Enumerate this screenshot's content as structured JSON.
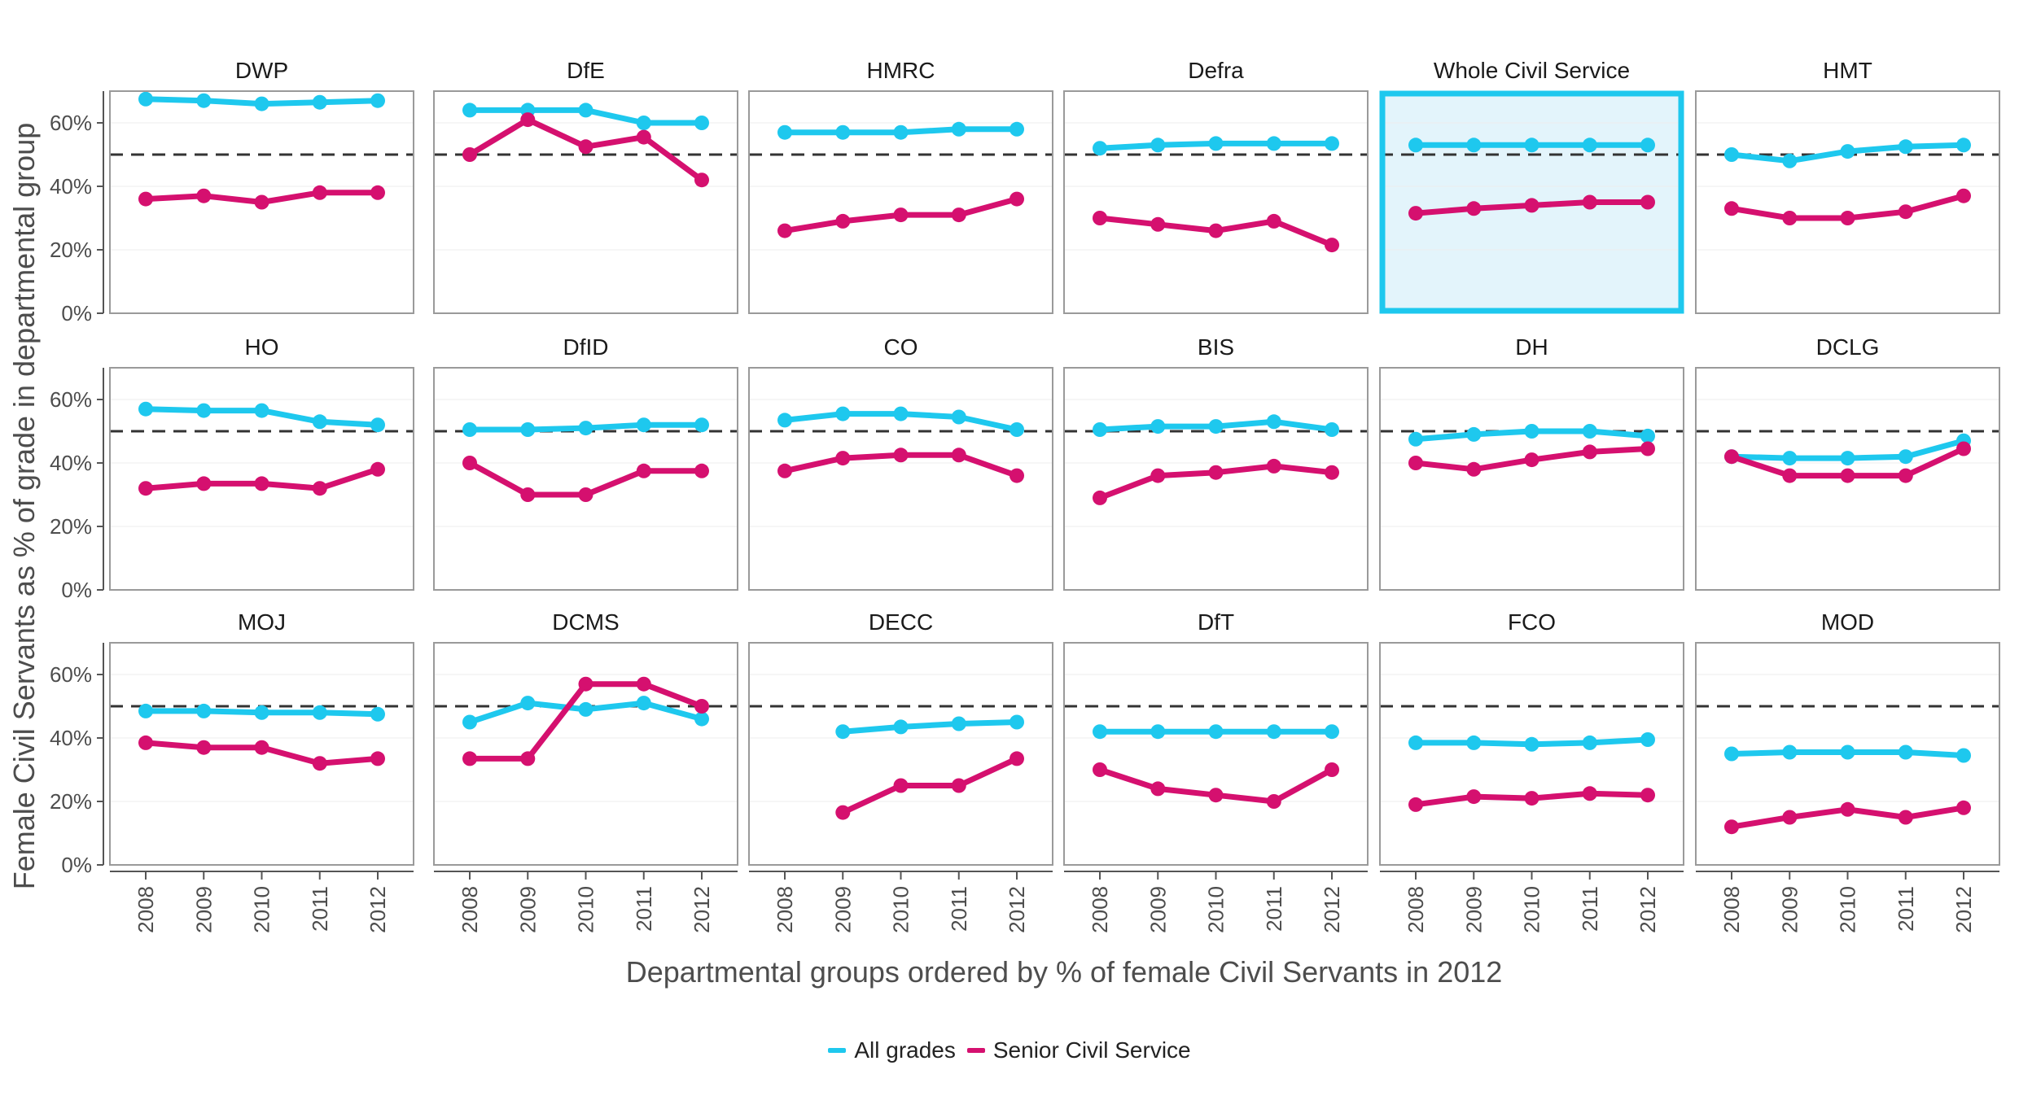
{
  "chart_data": {
    "type": "line",
    "xlabel": "Departmental groups ordered by % of female Civil Servants in 2012",
    "ylabel": "Female Civil Servants as % of grade in departmental group",
    "x_tick_labels": [
      "2008",
      "2009",
      "2010",
      "2011",
      "2012"
    ],
    "y_tick_labels": [
      "0%",
      "20%",
      "40%",
      "60%"
    ],
    "ylim": [
      0,
      70
    ],
    "reference_line": 50,
    "grid": true,
    "legend_position": "bottom",
    "highlight_panel": "Whole Civil Service",
    "colors": {
      "all_grades": "#1EC8EE",
      "senior_civil_service": "#D5106F",
      "highlight_border": "#1EC8EE",
      "highlight_fill": "#E3F4FB",
      "reference_line": "#333333"
    },
    "legend": [
      {
        "key": "all_grades",
        "label": "All grades"
      },
      {
        "key": "senior_civil_service",
        "label": "Senior Civil Service"
      }
    ],
    "panels": [
      {
        "name": "DWP",
        "all": [
          67.5,
          67,
          66,
          66.5,
          67
        ],
        "scs": [
          36,
          37,
          35,
          38,
          38
        ]
      },
      {
        "name": "DfE",
        "all": [
          64,
          64,
          64,
          60,
          60
        ],
        "scs": [
          50,
          61,
          52.5,
          55.5,
          42
        ]
      },
      {
        "name": "HMRC",
        "all": [
          57,
          57,
          57,
          58,
          58
        ],
        "scs": [
          26,
          29,
          31,
          31,
          36
        ]
      },
      {
        "name": "Defra",
        "all": [
          52,
          53,
          53.5,
          53.5,
          53.5
        ],
        "scs": [
          30,
          28,
          26,
          29,
          21.5
        ]
      },
      {
        "name": "Whole Civil Service",
        "all": [
          53,
          53,
          53,
          53,
          53
        ],
        "scs": [
          31.5,
          33,
          34,
          35,
          35
        ]
      },
      {
        "name": "HMT",
        "all": [
          50,
          48,
          51,
          52.5,
          53
        ],
        "scs": [
          33,
          30,
          30,
          32,
          37
        ]
      },
      {
        "name": "HO",
        "all": [
          57,
          56.5,
          56.5,
          53,
          52
        ],
        "scs": [
          32,
          33.5,
          33.5,
          32,
          38
        ]
      },
      {
        "name": "DfID",
        "all": [
          50.5,
          50.5,
          51,
          52,
          52
        ],
        "scs": [
          40,
          30,
          30,
          37.5,
          37.5
        ]
      },
      {
        "name": "CO",
        "all": [
          53.5,
          55.5,
          55.5,
          54.5,
          50.5
        ],
        "scs": [
          37.5,
          41.5,
          42.5,
          42.5,
          36
        ]
      },
      {
        "name": "BIS",
        "all": [
          50.5,
          51.5,
          51.5,
          53,
          50.5
        ],
        "scs": [
          29,
          36,
          37,
          39,
          37
        ]
      },
      {
        "name": "DH",
        "all": [
          47.5,
          49,
          50,
          50,
          48.5
        ],
        "scs": [
          40,
          38,
          41,
          43.5,
          44.5
        ]
      },
      {
        "name": "DCLG",
        "all": [
          42,
          41.5,
          41.5,
          42,
          47
        ],
        "scs": [
          42,
          36,
          36,
          36,
          44.5
        ]
      },
      {
        "name": "MOJ",
        "all": [
          48.5,
          48.5,
          48,
          48,
          47.5
        ],
        "scs": [
          38.5,
          37,
          37,
          32,
          33.5
        ]
      },
      {
        "name": "DCMS",
        "all": [
          45,
          51,
          49,
          51,
          46
        ],
        "scs": [
          33.5,
          33.5,
          57,
          57,
          50
        ]
      },
      {
        "name": "DECC",
        "all": [
          null,
          42,
          43.5,
          44.5,
          45
        ],
        "scs": [
          null,
          16.5,
          25,
          25,
          33.5
        ]
      },
      {
        "name": "DfT",
        "all": [
          42,
          42,
          42,
          42,
          42
        ],
        "scs": [
          30,
          24,
          22,
          20,
          30
        ]
      },
      {
        "name": "FCO",
        "all": [
          38.5,
          38.5,
          38,
          38.5,
          39.5
        ],
        "scs": [
          19,
          21.5,
          21,
          22.5,
          22
        ]
      },
      {
        "name": "MOD",
        "all": [
          35,
          35.5,
          35.5,
          35.5,
          34.5
        ],
        "scs": [
          12,
          15,
          17.5,
          15,
          18
        ]
      }
    ]
  }
}
